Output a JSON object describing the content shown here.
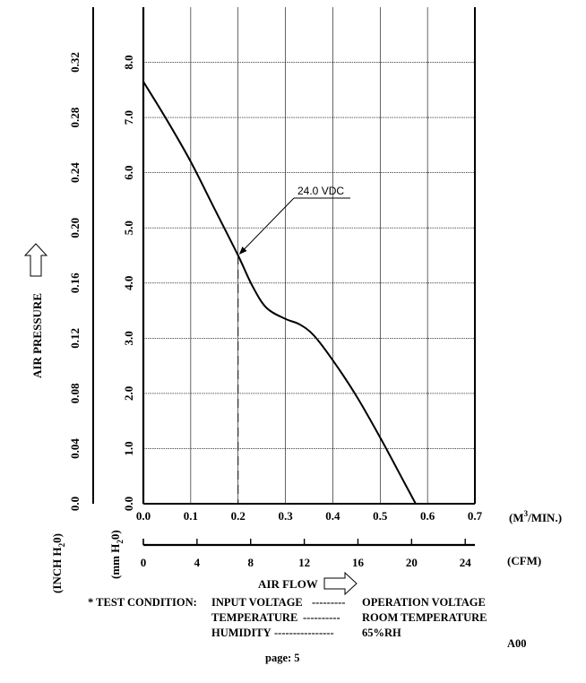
{
  "chart_data": {
    "type": "line",
    "xlabel": "AIR FLOW",
    "ylabel": "AIR PRESSURE",
    "x_unit": "(M3/MIN.)",
    "x_unit_base": "(M",
    "x_unit_sup": "3",
    "x_unit_tail": "/MIN.)",
    "x2_unit": "(CFM)",
    "y_unit_inch_pre": "(INCH H",
    "y_unit_inch_sub": "2",
    "y_unit_inch_post": "0)",
    "y_unit_mm_pre": "(mm H",
    "y_unit_mm_sub": "2",
    "y_unit_mm_post": "0)",
    "xlim": [
      0,
      0.7
    ],
    "ylim": [
      0,
      9.0
    ],
    "x_ticks": [
      "0.0",
      "0.1",
      "0.2",
      "0.3",
      "0.4",
      "0.5",
      "0.6",
      "0.7"
    ],
    "x2_ticks": [
      "0",
      "4",
      "8",
      "12",
      "16",
      "20",
      "24"
    ],
    "x2_values": [
      0,
      4,
      8,
      12,
      16,
      20,
      24
    ],
    "y_ticks_mm": [
      "0.0",
      "1.0",
      "2.0",
      "3.0",
      "4.0",
      "5.0",
      "6.0",
      "7.0",
      "8.0"
    ],
    "y_ticks_inch": [
      "0.0",
      "0.04",
      "0.08",
      "0.12",
      "0.16",
      "0.20",
      "0.24",
      "0.28",
      "0.32"
    ],
    "grid": true,
    "series": [
      {
        "name": "24.0 VDC",
        "x": [
          0.0,
          0.05,
          0.1,
          0.15,
          0.2,
          0.23,
          0.26,
          0.3,
          0.33,
          0.36,
          0.4,
          0.45,
          0.5,
          0.55,
          0.575
        ],
        "y": [
          7.65,
          6.95,
          6.2,
          5.35,
          4.5,
          3.95,
          3.55,
          3.35,
          3.25,
          3.05,
          2.6,
          1.95,
          1.2,
          0.4,
          0.0
        ]
      }
    ],
    "annotation": {
      "text": "24.0 VDC",
      "x": 0.2,
      "y": 4.5
    },
    "reference_x": 0.2
  },
  "test_condition": {
    "prefix": "* TEST CONDITION:",
    "rows": [
      {
        "label": "INPUT VOLTAGE",
        "leader": "---------",
        "value": "OPERATION VOLTAGE"
      },
      {
        "label": "TEMPERATURE",
        "leader": "----------",
        "value": "ROOM TEMPERATURE"
      },
      {
        "label": "HUMIDITY",
        "leader": "----------------",
        "value": "65%RH"
      }
    ]
  },
  "footer": {
    "page": "page: 5",
    "rev": "A00"
  }
}
